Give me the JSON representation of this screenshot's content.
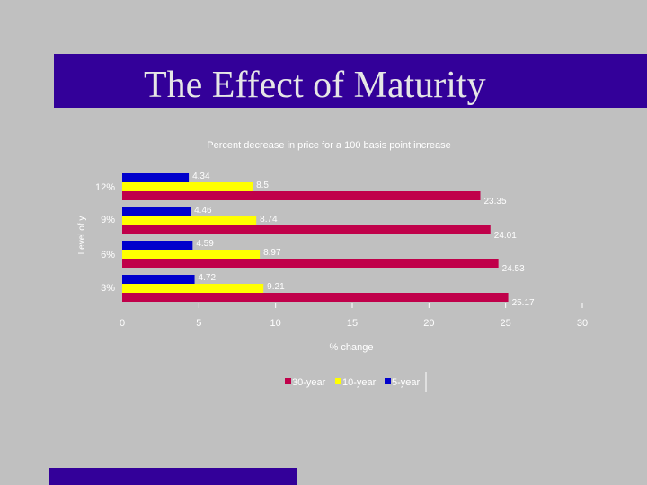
{
  "slide": {
    "title": "The Effect of Maturity"
  },
  "colors": {
    "background": "#c0c0c0",
    "banner": "#330099"
  },
  "chart_data": {
    "type": "bar",
    "orientation": "horizontal",
    "title": "Percent decrease in price for a 100 basis point increase",
    "xlabel": "% change",
    "ylabel": "Level of y",
    "categories": [
      "12%",
      "9%",
      "6%",
      "3%"
    ],
    "series": [
      {
        "name": "5-year",
        "color": "#0000cc",
        "values": [
          4.34,
          4.46,
          4.59,
          4.72
        ]
      },
      {
        "name": "10-year",
        "color": "#ffff00",
        "values": [
          8.5,
          8.74,
          8.97,
          9.21
        ]
      },
      {
        "name": "30-year",
        "color": "#c0004a",
        "values": [
          23.35,
          24.01,
          24.53,
          25.17
        ]
      }
    ],
    "value_labels": [
      [
        "4.34",
        "4.46",
        "4.59",
        "4.72"
      ],
      [
        "8.5",
        "8.74",
        "8.97",
        "9.21"
      ],
      [
        "23.35",
        "24.01",
        "24.53",
        "25.17"
      ]
    ],
    "xlim": [
      0,
      30
    ],
    "xticks": [
      "0",
      "5",
      "10",
      "15",
      "20",
      "25",
      "30"
    ],
    "grid": false,
    "legend": {
      "position": "bottom",
      "entries": [
        "30-year",
        "10-year",
        "5-year"
      ]
    }
  }
}
